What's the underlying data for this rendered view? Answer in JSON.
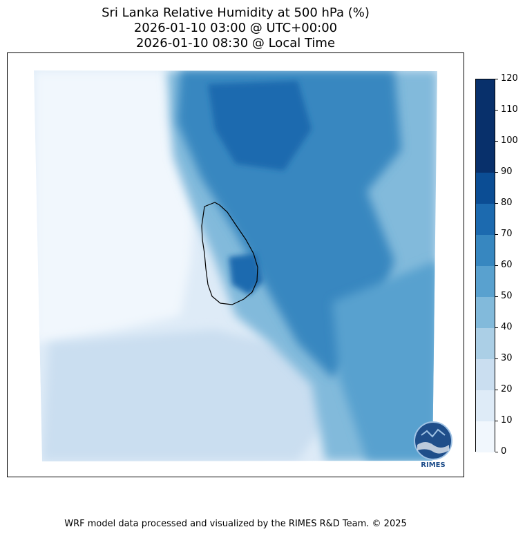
{
  "title_lines": [
    "Sri Lanka Relative Humidity at 500 hPa (%)",
    "2026-01-10 03:00 @ UTC+00:00",
    "2026-01-10 08:30 @ Local Time"
  ],
  "footer": "WRF model data processed and visualized by the RIMES R&D Team. © 2025",
  "logo": {
    "label": "RIMES",
    "icon": "rimes-logo-icon"
  },
  "chart_data": {
    "type": "heatmap",
    "title": "Sri Lanka Relative Humidity at 500 hPa (%)",
    "subtitle": [
      "2026-01-10 03:00 @ UTC+00:00",
      "2026-01-10 08:30 @ Local Time"
    ],
    "variable": "Relative Humidity",
    "units": "%",
    "colormap": "Blues",
    "levels": [
      0,
      10,
      20,
      30,
      40,
      50,
      60,
      70,
      80,
      90,
      100,
      110,
      120
    ],
    "colorbar_ticks": [
      "0",
      "10",
      "20",
      "30",
      "40",
      "50",
      "60",
      "70",
      "80",
      "90",
      "100",
      "110",
      "120"
    ],
    "level_colors": [
      "#f1f7fd",
      "#deebf7",
      "#cadef0",
      "#abcfe6",
      "#82badb",
      "#59a1cf",
      "#3787c0",
      "#1c6aaf",
      "#0b4d94",
      "#08306b",
      "#08306b",
      "#08306b"
    ],
    "legend_position": "right"
  }
}
